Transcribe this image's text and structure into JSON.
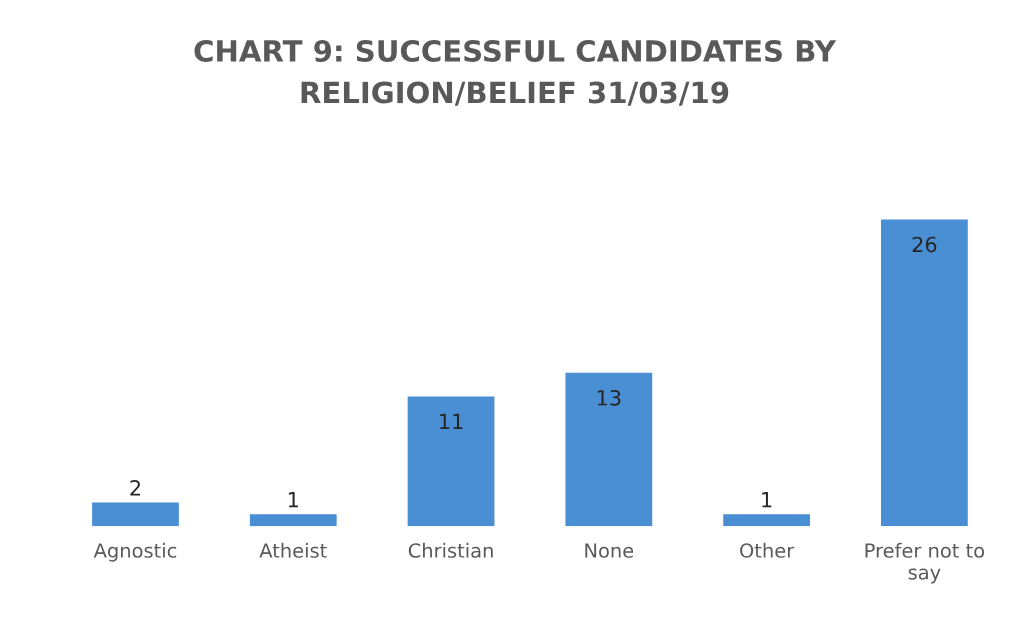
{
  "chart_data": {
    "type": "bar",
    "title": "CHART 9: SUCCESSFUL CANDIDATES BY\nRELIGION/BELIEF 31/03/19",
    "categories": [
      "Agnostic",
      "Atheist",
      "Christian",
      "None",
      "Other",
      "Prefer not to say"
    ],
    "values": [
      2,
      1,
      11,
      13,
      1,
      26
    ],
    "color": "#4a8fd4",
    "data_labels": true,
    "grid": false,
    "legend": false
  }
}
